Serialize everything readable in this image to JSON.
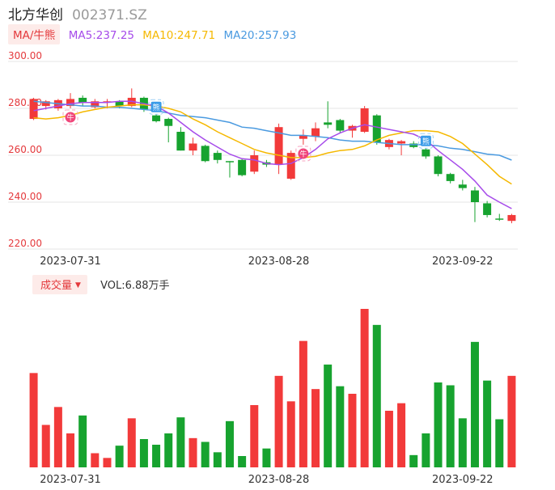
{
  "header": {
    "name": "北方华创",
    "code": "002371.SZ"
  },
  "ma_legend": {
    "toggle_label": "MA/牛熊",
    "ma5": "MA5:237.25",
    "ma10": "MA10:247.71",
    "ma20": "MA20:257.93",
    "colors": {
      "ma5": "#a64bea",
      "ma10": "#f5b800",
      "ma20": "#4a9ae0"
    }
  },
  "volume_legend": {
    "toggle_label": "成交量",
    "arrow": "▼",
    "value": "VOL:6.88万手"
  },
  "colors": {
    "up": "#f23a3a",
    "down": "#17a32f"
  },
  "badges": [
    {
      "label": "牛",
      "kind": "bull",
      "index": 3
    },
    {
      "label": "熊",
      "kind": "bear",
      "index": 10
    },
    {
      "label": "牛",
      "kind": "bull",
      "index": 22
    },
    {
      "label": "熊",
      "kind": "bear",
      "index": 32
    }
  ],
  "chart_data": {
    "type": "candlestick",
    "y_ticks": [
      "300.00",
      "280.00",
      "260.00",
      "240.00",
      "220.00"
    ],
    "y_tick_values": [
      300,
      280,
      260,
      240,
      220
    ],
    "ylim": [
      220,
      300
    ],
    "x_tick_labels": [
      {
        "index": 3,
        "label": "2023-07-31"
      },
      {
        "index": 20,
        "label": "2023-08-28"
      },
      {
        "index": 35,
        "label": "2023-09-22"
      }
    ],
    "candles": [
      {
        "open": 275.5,
        "high": 284.5,
        "low": 275.0,
        "close": 284.0
      },
      {
        "open": 281.0,
        "high": 283.5,
        "low": 279.5,
        "close": 283.0
      },
      {
        "open": 280.0,
        "high": 284.0,
        "low": 279.0,
        "close": 283.5
      },
      {
        "open": 281.0,
        "high": 286.5,
        "low": 280.0,
        "close": 284.0
      },
      {
        "open": 284.5,
        "high": 285.5,
        "low": 281.0,
        "close": 282.5
      },
      {
        "open": 280.5,
        "high": 284.0,
        "low": 280.0,
        "close": 283.0
      },
      {
        "open": 282.5,
        "high": 284.0,
        "low": 280.0,
        "close": 283.0
      },
      {
        "open": 283.0,
        "high": 283.5,
        "low": 280.0,
        "close": 281.0
      },
      {
        "open": 281.0,
        "high": 288.5,
        "low": 280.5,
        "close": 284.5
      },
      {
        "open": 284.5,
        "high": 285.0,
        "low": 278.5,
        "close": 279.5
      },
      {
        "open": 277.0,
        "high": 277.5,
        "low": 274.0,
        "close": 274.5
      },
      {
        "open": 275.5,
        "high": 276.0,
        "low": 265.5,
        "close": 272.5
      },
      {
        "open": 270.0,
        "high": 272.0,
        "low": 262.0,
        "close": 262.0
      },
      {
        "open": 262.0,
        "high": 267.5,
        "low": 260.0,
        "close": 265.0
      },
      {
        "open": 264.0,
        "high": 264.5,
        "low": 257.0,
        "close": 257.5
      },
      {
        "open": 261.0,
        "high": 262.0,
        "low": 256.5,
        "close": 258.0
      },
      {
        "open": 257.5,
        "high": 257.5,
        "low": 250.5,
        "close": 257.0
      },
      {
        "open": 258.0,
        "high": 258.5,
        "low": 251.0,
        "close": 251.5
      },
      {
        "open": 253.0,
        "high": 262.0,
        "low": 252.0,
        "close": 260.0
      },
      {
        "open": 257.0,
        "high": 258.0,
        "low": 255.0,
        "close": 256.0
      },
      {
        "open": 256.0,
        "high": 273.5,
        "low": 252.0,
        "close": 272.0
      },
      {
        "open": 250.0,
        "high": 262.0,
        "low": 249.5,
        "close": 261.0
      },
      {
        "open": 267.0,
        "high": 271.0,
        "low": 264.5,
        "close": 268.5
      },
      {
        "open": 268.0,
        "high": 274.0,
        "low": 266.0,
        "close": 271.5
      },
      {
        "open": 274.0,
        "high": 283.0,
        "low": 271.5,
        "close": 273.0
      },
      {
        "open": 275.0,
        "high": 275.5,
        "low": 269.5,
        "close": 270.5
      },
      {
        "open": 270.5,
        "high": 273.0,
        "low": 267.5,
        "close": 272.5
      },
      {
        "open": 270.0,
        "high": 281.0,
        "low": 269.5,
        "close": 280.0
      },
      {
        "open": 277.0,
        "high": 277.5,
        "low": 264.5,
        "close": 265.5
      },
      {
        "open": 263.5,
        "high": 267.0,
        "low": 262.5,
        "close": 266.5
      },
      {
        "open": 265.0,
        "high": 266.5,
        "low": 260.0,
        "close": 266.0
      },
      {
        "open": 265.0,
        "high": 266.0,
        "low": 263.0,
        "close": 263.5
      },
      {
        "open": 262.5,
        "high": 263.0,
        "low": 258.5,
        "close": 259.5
      },
      {
        "open": 259.5,
        "high": 260.0,
        "low": 251.0,
        "close": 252.0
      },
      {
        "open": 252.0,
        "high": 252.5,
        "low": 248.0,
        "close": 249.0
      },
      {
        "open": 247.5,
        "high": 249.5,
        "low": 245.0,
        "close": 246.0
      },
      {
        "open": 245.0,
        "high": 246.5,
        "low": 231.5,
        "close": 240.0
      },
      {
        "open": 239.5,
        "high": 240.5,
        "low": 233.5,
        "close": 234.5
      },
      {
        "open": 233.0,
        "high": 235.0,
        "low": 232.0,
        "close": 232.5
      },
      {
        "open": 232.0,
        "high": 235.0,
        "low": 231.0,
        "close": 234.5
      }
    ],
    "ma5": [
      279.0,
      280.0,
      281.0,
      282.0,
      282.5,
      282.5,
      282.5,
      283.0,
      283.0,
      282.0,
      281.0,
      278.0,
      274.0,
      270.0,
      266.5,
      263.5,
      260.5,
      258.5,
      258.0,
      256.5,
      256.0,
      256.5,
      259.0,
      262.5,
      267.0,
      269.5,
      271.5,
      273.0,
      272.0,
      271.0,
      270.0,
      269.0,
      266.5,
      262.0,
      258.0,
      254.0,
      249.0,
      243.0,
      240.0,
      237.25
    ],
    "ma10": [
      276.0,
      275.5,
      276.0,
      277.0,
      278.5,
      279.5,
      280.5,
      281.0,
      281.5,
      281.5,
      281.0,
      280.0,
      278.5,
      275.5,
      273.0,
      270.0,
      267.5,
      265.0,
      262.5,
      261.0,
      260.0,
      259.0,
      259.0,
      259.5,
      261.0,
      262.0,
      262.5,
      264.0,
      266.5,
      268.5,
      269.5,
      270.5,
      270.5,
      270.0,
      268.0,
      265.0,
      260.5,
      256.0,
      251.0,
      247.71
    ],
    "ma20": [
      283.0,
      282.5,
      282.0,
      281.5,
      281.0,
      281.0,
      280.5,
      280.5,
      280.0,
      279.5,
      279.0,
      278.0,
      277.0,
      276.5,
      276.0,
      275.0,
      274.0,
      272.0,
      271.5,
      270.5,
      269.5,
      268.5,
      268.5,
      268.0,
      267.5,
      266.5,
      266.0,
      266.0,
      265.5,
      265.0,
      264.5,
      264.5,
      264.5,
      264.0,
      263.0,
      262.5,
      261.5,
      260.5,
      260.0,
      257.93
    ],
    "volume": [
      100,
      45,
      64,
      36,
      55,
      15,
      10,
      23,
      52,
      30,
      24,
      36,
      53,
      31,
      27,
      16,
      49,
      12,
      66,
      20,
      97,
      70,
      134,
      83,
      109,
      86,
      78,
      168,
      151,
      60,
      68,
      13,
      36,
      90,
      87,
      52,
      133,
      92,
      51,
      97
    ]
  }
}
